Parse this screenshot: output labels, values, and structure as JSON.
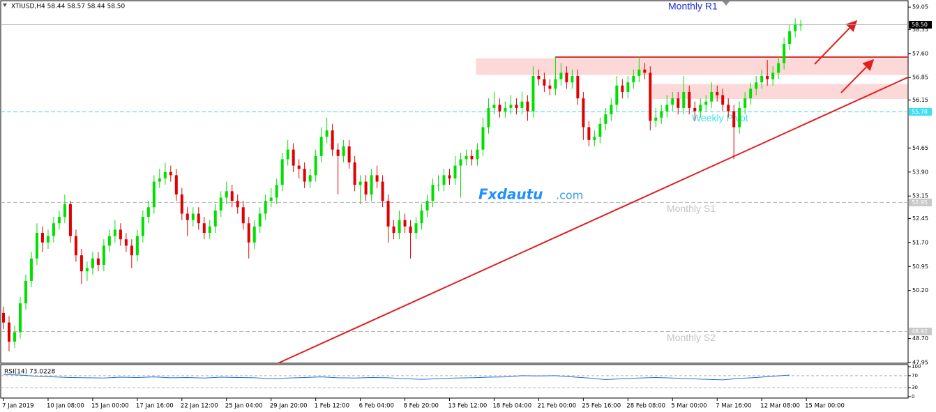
{
  "chart_data": [
    {
      "type": "candlestick",
      "title": "XTIUSD,H4  58.44 58.57 58.44 58.50",
      "annotation": "Monthly R1",
      "watermark": "Fxdautu",
      "watermark_suffix": ".com",
      "up_color": "#00e000",
      "down_color": "#e00000",
      "open": [
        49.5,
        49.2,
        48.6,
        48.9,
        49.8,
        50.5,
        51.2,
        52.0,
        51.7,
        51.9,
        52.3,
        52.5,
        52.9,
        51.9,
        51.3,
        50.8,
        50.9,
        51.2,
        51.0,
        51.6,
        51.9,
        52.1,
        51.8,
        51.6,
        51.3,
        51.9,
        52.5,
        52.8,
        53.6,
        53.7,
        53.9,
        53.8,
        53.2,
        52.6,
        52.4,
        52.6,
        52.3,
        52.0,
        52.2,
        52.7,
        53.1,
        53.3,
        53.0,
        52.8,
        52.3,
        51.7,
        52.2,
        52.6,
        53.0,
        53.1,
        53.5,
        54.3,
        54.6,
        54.1,
        54.0,
        53.6,
        53.8,
        54.4,
        55.0,
        55.2,
        54.6,
        54.4,
        54.7,
        54.2,
        53.5,
        53.6,
        53.2,
        53.8,
        53.6,
        53.0,
        52.2,
        52.0,
        52.4,
        52.2,
        52.0,
        52.3,
        52.7,
        53.0,
        53.5,
        53.5,
        53.8,
        53.7,
        54.1,
        54.3,
        54.4,
        54.3,
        54.6,
        55.3,
        55.9,
        56.0,
        55.8,
        55.9,
        56.0,
        55.9,
        56.1,
        55.8,
        56.9,
        56.8,
        56.6,
        56.5,
        56.8,
        57.0,
        56.7,
        56.9,
        56.2,
        55.3,
        54.9,
        55.0,
        55.4,
        55.7,
        56.0,
        56.6,
        56.4,
        56.7,
        56.9,
        57.1,
        57.0,
        55.5,
        55.6,
        55.8,
        56.0,
        56.2,
        55.9,
        56.4,
        55.9,
        55.8,
        56.0,
        56.1,
        56.4,
        56.3,
        56.0,
        55.8,
        55.3,
        55.9,
        56.2,
        56.5,
        56.7,
        56.9,
        56.8,
        57.0,
        57.3,
        57.9,
        58.3,
        58.5
      ],
      "high": [
        49.7,
        49.4,
        49.1,
        50.0,
        50.7,
        51.4,
        52.3,
        52.2,
        52.1,
        52.5,
        52.7,
        53.2,
        53.0,
        52.1,
        51.5,
        51.1,
        51.4,
        51.4,
        51.8,
        52.1,
        52.4,
        52.3,
        52.0,
        51.8,
        52.1,
        52.7,
        53.0,
        53.8,
        54.0,
        54.2,
        54.1,
        54.0,
        53.4,
        52.8,
        52.8,
        52.8,
        52.5,
        52.4,
        52.9,
        53.3,
        53.6,
        53.5,
        53.2,
        53.0,
        52.5,
        52.4,
        52.8,
        53.2,
        53.4,
        53.7,
        54.5,
        54.9,
        54.8,
        54.3,
        54.2,
        54.0,
        54.6,
        55.3,
        55.6,
        55.4,
        54.8,
        54.9,
        54.9,
        54.4,
        53.8,
        53.8,
        54.0,
        54.1,
        53.8,
        53.2,
        52.4,
        52.7,
        52.6,
        52.4,
        52.5,
        52.9,
        53.2,
        53.7,
        53.8,
        54.0,
        54.0,
        54.4,
        54.5,
        54.6,
        54.6,
        54.8,
        55.6,
        56.2,
        56.4,
        56.2,
        56.1,
        56.3,
        56.2,
        56.4,
        56.3,
        57.2,
        57.1,
        57.0,
        56.8,
        57.5,
        57.3,
        57.2,
        57.1,
        57.1,
        56.4,
        55.5,
        55.2,
        55.6,
        55.9,
        56.2,
        56.9,
        56.8,
        56.9,
        57.1,
        57.5,
        57.3,
        57.2,
        55.9,
        56.0,
        56.3,
        56.4,
        56.4,
        56.9,
        56.6,
        56.1,
        56.2,
        56.3,
        56.7,
        56.6,
        56.5,
        56.2,
        56.0,
        56.1,
        56.4,
        56.7,
        56.9,
        57.1,
        57.4,
        57.2,
        57.5,
        58.1,
        58.5,
        58.7,
        58.65
      ],
      "low": [
        49.0,
        48.3,
        48.4,
        48.7,
        49.6,
        50.3,
        51.0,
        51.4,
        51.5,
        51.7,
        52.1,
        52.3,
        51.7,
        51.1,
        50.4,
        50.5,
        50.7,
        50.8,
        50.8,
        51.4,
        51.7,
        51.6,
        51.4,
        50.9,
        51.1,
        51.7,
        52.3,
        52.6,
        53.4,
        53.5,
        53.6,
        53.0,
        52.4,
        51.9,
        52.2,
        52.1,
        51.8,
        51.8,
        52.0,
        52.5,
        52.9,
        52.8,
        52.6,
        52.1,
        51.2,
        51.5,
        52.0,
        52.4,
        52.8,
        52.9,
        53.3,
        54.1,
        53.9,
        53.7,
        53.4,
        53.4,
        53.6,
        54.2,
        54.8,
        54.4,
        53.2,
        54.2,
        54.0,
        53.3,
        52.9,
        53.0,
        53.0,
        53.4,
        52.8,
        51.7,
        51.8,
        51.8,
        52.0,
        51.2,
        51.8,
        52.1,
        52.5,
        52.8,
        53.3,
        53.3,
        53.5,
        53.5,
        53.1,
        54.1,
        54.1,
        54.1,
        54.4,
        55.1,
        55.7,
        55.6,
        55.6,
        55.7,
        55.7,
        55.7,
        55.5,
        55.6,
        56.6,
        56.4,
        56.3,
        56.3,
        56.6,
        56.5,
        56.5,
        56.0,
        54.9,
        54.7,
        54.7,
        54.8,
        55.2,
        55.5,
        55.8,
        56.2,
        56.2,
        56.5,
        56.7,
        56.8,
        55.2,
        55.3,
        55.4,
        55.6,
        55.8,
        55.7,
        55.7,
        55.7,
        55.5,
        55.6,
        55.8,
        55.9,
        56.1,
        55.8,
        55.6,
        54.3,
        55.1,
        55.7,
        56.0,
        56.3,
        56.5,
        56.6,
        56.6,
        56.8,
        57.1,
        57.7,
        58.1,
        58.3
      ],
      "close": [
        49.2,
        48.6,
        48.9,
        49.8,
        50.5,
        51.2,
        52.0,
        51.7,
        51.9,
        52.3,
        52.5,
        52.9,
        51.9,
        51.3,
        50.8,
        50.9,
        51.2,
        51.0,
        51.6,
        51.9,
        52.1,
        51.8,
        51.6,
        51.3,
        51.9,
        52.5,
        52.8,
        53.6,
        53.7,
        53.9,
        53.8,
        53.2,
        52.6,
        52.4,
        52.6,
        52.3,
        52.0,
        52.2,
        52.7,
        53.1,
        53.3,
        53.0,
        52.8,
        52.3,
        51.7,
        52.2,
        52.6,
        53.0,
        53.1,
        53.5,
        54.3,
        54.6,
        54.1,
        54.0,
        53.6,
        53.8,
        54.4,
        55.0,
        55.2,
        54.6,
        54.4,
        54.7,
        54.2,
        53.5,
        53.6,
        53.2,
        53.8,
        53.6,
        53.0,
        52.2,
        52.0,
        52.4,
        52.2,
        52.0,
        52.3,
        52.7,
        53.0,
        53.5,
        53.5,
        53.8,
        53.7,
        54.1,
        54.3,
        54.4,
        54.3,
        54.6,
        55.3,
        55.9,
        56.0,
        55.8,
        55.9,
        56.0,
        55.9,
        56.1,
        55.8,
        56.9,
        56.8,
        56.6,
        56.5,
        56.8,
        57.0,
        56.7,
        56.9,
        56.2,
        55.3,
        54.9,
        55.0,
        55.4,
        55.7,
        56.0,
        56.6,
        56.4,
        56.7,
        56.9,
        57.1,
        57.0,
        55.5,
        55.6,
        55.8,
        56.0,
        56.2,
        55.9,
        56.4,
        55.9,
        55.8,
        56.0,
        56.1,
        56.4,
        56.3,
        56.0,
        55.8,
        55.3,
        55.9,
        56.2,
        56.5,
        56.7,
        56.9,
        56.8,
        57.0,
        57.3,
        57.9,
        58.3,
        58.5,
        58.5
      ],
      "xlim": [
        -0.5,
        162.25
      ],
      "xticks": [
        {
          "value": 0,
          "label": "7 Jan 2019"
        },
        {
          "value": 8,
          "label": "10 Jan 08:00"
        },
        {
          "value": 16,
          "label": "15 Jan 00:00"
        },
        {
          "value": 24,
          "label": "17 Jan 16:00"
        },
        {
          "value": 32,
          "label": "22 Jan 12:00"
        },
        {
          "value": 40,
          "label": "25 Jan 04:00"
        },
        {
          "value": 48,
          "label": "29 Jan 20:00"
        },
        {
          "value": 56,
          "label": "1 Feb 12:00"
        },
        {
          "value": 64,
          "label": "6 Feb 04:00"
        },
        {
          "value": 72,
          "label": "8 Feb 20:00"
        },
        {
          "value": 80,
          "label": "13 Feb 12:00"
        },
        {
          "value": 88,
          "label": "18 Feb 04:00"
        },
        {
          "value": 96,
          "label": "21 Feb 00:00"
        },
        {
          "value": 104,
          "label": "25 Feb 16:00"
        },
        {
          "value": 112,
          "label": "28 Feb 08:00"
        },
        {
          "value": 120,
          "label": "5 Mar 00:00"
        },
        {
          "value": 128,
          "label": "7 Mar 16:00"
        },
        {
          "value": 136,
          "label": "12 Mar 08:00"
        },
        {
          "value": 144,
          "label": "15 Mar 00:00"
        }
      ],
      "ylim": [
        47.93,
        59.25
      ],
      "yticks": [
        {
          "value": 59.05,
          "label": "59.05"
        },
        {
          "value": 58.35,
          "label": "58.35"
        },
        {
          "value": 57.6,
          "label": "57.60"
        },
        {
          "value": 56.85,
          "label": "56.85"
        },
        {
          "value": 56.15,
          "label": "56.15"
        },
        {
          "value": 54.65,
          "label": "54.65"
        },
        {
          "value": 53.9,
          "label": "53.90"
        },
        {
          "value": 53.15,
          "label": "53.15"
        },
        {
          "value": 52.45,
          "label": "52.45"
        },
        {
          "value": 51.7,
          "label": "51.70"
        },
        {
          "value": 50.95,
          "label": "50.95"
        },
        {
          "value": 50.2,
          "label": "50.20"
        },
        {
          "value": 48.7,
          "label": "48.70"
        },
        {
          "value": 47.95,
          "label": "47.95"
        }
      ],
      "levels": [
        {
          "value": 58.5,
          "label": "58.50",
          "color": "#a8b0b8",
          "style": "solid",
          "box": "#000000",
          "text_color": "#ffffff"
        },
        {
          "name": "Weekly Pivot",
          "value": 55.78,
          "color": "#30d8e8",
          "style": "dashed",
          "box": "#40e0f0",
          "text_color": "#ffffff"
        },
        {
          "name": "Monthly S1",
          "value": 52.95,
          "color": "#b8b8b8",
          "style": "dashed",
          "box": "#c8c8c8",
          "text_color": "#ffffff"
        },
        {
          "name": "Monthly S2",
          "value": 48.92,
          "color": "#b8b8b8",
          "style": "dashed",
          "box": "#c8c8c8",
          "text_color": "#ffffff"
        }
      ],
      "zones": [
        {
          "x": [
            84.75,
            162.25
          ],
          "y": [
            56.93,
            57.45
          ],
          "color": "#fdd8d8"
        },
        {
          "x": [
            116.4,
            162.25
          ],
          "y": [
            56.18,
            56.65
          ],
          "color": "#fdd8d8"
        }
      ],
      "resistance": {
        "x": [
          98.9,
          162.25
        ],
        "value": 57.49,
        "color": "#e02020"
      },
      "trendline": {
        "x": [
          49.25,
          162.25
        ],
        "y": [
          47.93,
          56.86
        ],
        "color": "#e02020"
      }
    },
    {
      "type": "line",
      "title": "RSI(14) 73.0228",
      "color": "#1e6fd0",
      "x": [
        0,
        3,
        6,
        9,
        12,
        15,
        18,
        21,
        24,
        27,
        30,
        33,
        36,
        39,
        42,
        45,
        48,
        51,
        54,
        57,
        60,
        63,
        66,
        69,
        72,
        75,
        78,
        81,
        84,
        87,
        90,
        93,
        96,
        99,
        102,
        105,
        108,
        111,
        114,
        117,
        120,
        123,
        126,
        129,
        132,
        135,
        138,
        141
      ],
      "values": [
        74,
        72,
        68,
        66,
        64,
        63,
        62,
        65,
        64,
        66,
        63,
        64,
        62,
        65,
        64,
        63,
        60,
        62,
        64,
        66,
        63,
        62,
        64,
        63,
        60,
        58,
        60,
        62,
        63,
        65,
        66,
        70,
        69,
        70,
        66,
        62,
        57,
        60,
        62,
        64,
        62,
        60,
        58,
        56,
        61,
        64,
        68,
        72
      ],
      "xlim": [
        -0.5,
        162.25
      ],
      "ylim": [
        0,
        100
      ],
      "yticks": [
        100,
        70,
        30,
        0
      ],
      "levels": [
        70,
        30
      ]
    }
  ]
}
